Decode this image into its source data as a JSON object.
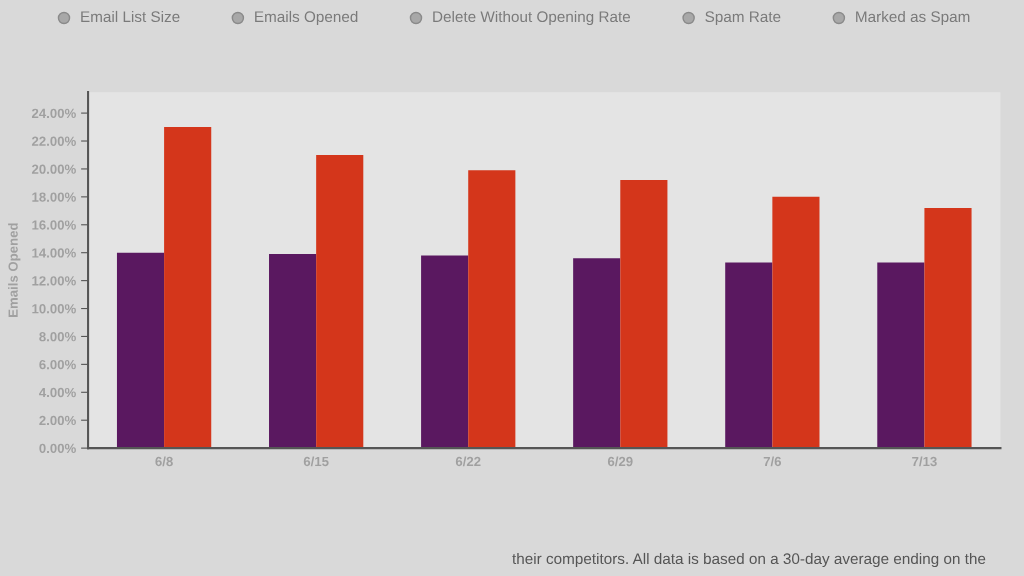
{
  "chart_data": {
    "type": "bar",
    "ylabel": "Emails Opened",
    "categories": [
      "6/8",
      "6/15",
      "6/22",
      "6/29",
      "7/6",
      "7/13"
    ],
    "series": [
      {
        "color": "#5a1860",
        "values": [
          14.0,
          13.9,
          13.8,
          13.6,
          13.3,
          13.3
        ]
      },
      {
        "color": "#d4361b",
        "values": [
          23.0,
          21.0,
          19.9,
          19.2,
          18.0,
          17.2
        ]
      }
    ],
    "ylim": [
      0,
      25.5
    ],
    "yticks": [
      {
        "value": 0,
        "label": "0.00%"
      },
      {
        "value": 2,
        "label": "2.00%"
      },
      {
        "value": 4,
        "label": "4.00%"
      },
      {
        "value": 6,
        "label": "6.00%"
      },
      {
        "value": 8,
        "label": "8.00%"
      },
      {
        "value": 10,
        "label": "10.00%"
      },
      {
        "value": 12,
        "label": "12.00%"
      },
      {
        "value": 14,
        "label": "14.00%"
      },
      {
        "value": 16,
        "label": "16.00%"
      },
      {
        "value": 18,
        "label": "18.00%"
      },
      {
        "value": 20,
        "label": "20.00%"
      },
      {
        "value": 22,
        "label": "22.00%"
      },
      {
        "value": 24,
        "label": "24.00%"
      }
    ],
    "grid": false,
    "annotations": [
      "Email List Size",
      "Emails Opened",
      "Delete Without Opening Rate",
      "Spam Rate",
      "Marked as Spam",
      "their competitors. All data is based on a 30-day average ending on the"
    ]
  }
}
